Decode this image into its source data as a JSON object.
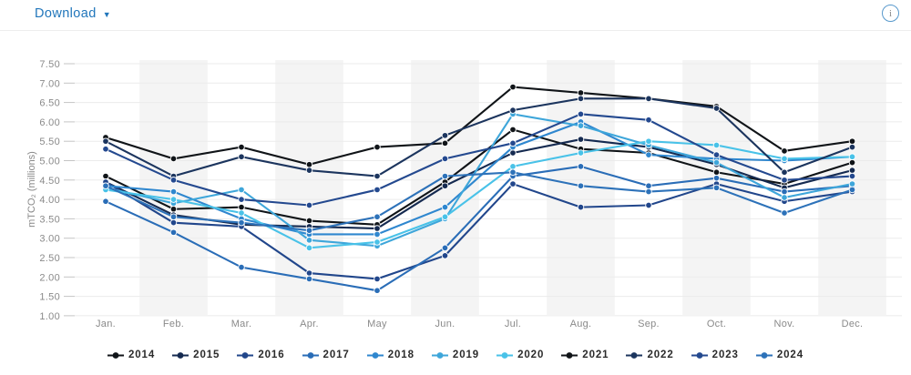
{
  "header": {
    "download_label": "Download",
    "caret": "▼",
    "info_label": "i"
  },
  "chart_data": {
    "type": "line",
    "title": "",
    "xlabel": "",
    "ylabel": "mTCO₂ (millions)",
    "ylim": [
      1.0,
      7.5
    ],
    "y_tick_labels": [
      "7.50",
      "7.00",
      "6.50",
      "6.00",
      "5.50",
      "5.00",
      "4.50",
      "4.00",
      "3.50",
      "3.00",
      "2.50",
      "2.00",
      "1.50",
      "1.00"
    ],
    "grid": "horizontal",
    "legend_position": "bottom",
    "categories": [
      "Jan.",
      "Feb.",
      "Mar.",
      "Apr.",
      "May",
      "Jun.",
      "Jul.",
      "Aug.",
      "Sep.",
      "Oct.",
      "Nov.",
      "Dec."
    ],
    "series": [
      {
        "name": "2014",
        "color": "#101418",
        "values": [
          4.6,
          3.75,
          3.8,
          3.45,
          3.35,
          4.45,
          5.8,
          5.3,
          5.2,
          4.7,
          4.4,
          4.95
        ]
      },
      {
        "name": "2015",
        "color": "#152a50",
        "values": [
          4.45,
          3.6,
          3.35,
          3.3,
          3.25,
          4.35,
          5.2,
          5.55,
          5.35,
          4.9,
          4.3,
          4.75
        ]
      },
      {
        "name": "2016",
        "color": "#21468b",
        "values": [
          4.45,
          3.4,
          3.3,
          2.1,
          1.95,
          2.55,
          4.4,
          3.8,
          3.85,
          4.4,
          3.95,
          4.2
        ]
      },
      {
        "name": "2017",
        "color": "#2a6db7",
        "values": [
          3.95,
          3.15,
          2.25,
          1.95,
          1.65,
          2.75,
          4.6,
          4.85,
          4.35,
          4.55,
          4.2,
          4.35
        ]
      },
      {
        "name": "2018",
        "color": "#2f87cf",
        "values": [
          4.35,
          4.2,
          3.5,
          3.1,
          3.1,
          3.8,
          5.35,
          6.0,
          5.15,
          5.05,
          5.0,
          5.1
        ]
      },
      {
        "name": "2019",
        "color": "#3ea6da",
        "values": [
          4.3,
          3.9,
          4.25,
          2.95,
          2.8,
          3.5,
          6.2,
          5.9,
          5.4,
          4.95,
          4.05,
          4.4
        ]
      },
      {
        "name": "2020",
        "color": "#49c2e8",
        "values": [
          4.25,
          4.0,
          3.65,
          2.75,
          2.9,
          3.55,
          4.85,
          5.2,
          5.5,
          5.4,
          5.05,
          5.1
        ]
      },
      {
        "name": "2021",
        "color": "#101418",
        "values": [
          5.6,
          5.05,
          5.35,
          4.9,
          5.35,
          5.45,
          6.9,
          6.75,
          6.6,
          6.4,
          5.25,
          5.5
        ]
      },
      {
        "name": "2022",
        "color": "#1c355e",
        "values": [
          5.5,
          4.6,
          5.1,
          4.75,
          4.6,
          5.65,
          6.3,
          6.6,
          6.6,
          6.35,
          4.7,
          5.35
        ]
      },
      {
        "name": "2023",
        "color": "#24498f",
        "values": [
          5.3,
          4.5,
          4.0,
          3.85,
          4.25,
          5.05,
          5.45,
          6.2,
          6.05,
          5.15,
          4.5,
          4.6
        ]
      },
      {
        "name": "2024",
        "color": "#2d72b9",
        "values": [
          4.35,
          3.55,
          3.4,
          3.2,
          3.55,
          4.6,
          4.7,
          4.35,
          4.2,
          4.3,
          3.65,
          4.25
        ]
      }
    ]
  }
}
